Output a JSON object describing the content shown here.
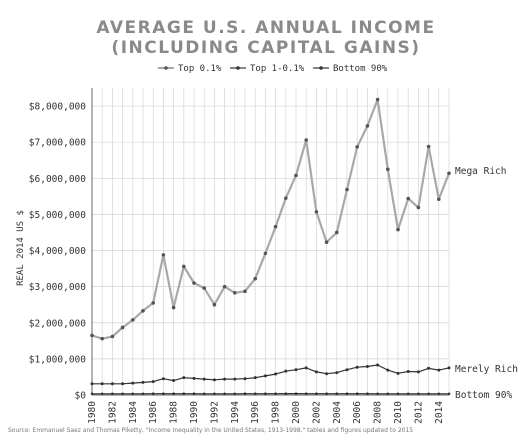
{
  "chart_data": {
    "type": "line",
    "title_line1": "AVERAGE U.S. ANNUAL INCOME",
    "title_line2": "(INCLUDING CAPITAL GAINS)",
    "ylabel": "REAL 2014 US $",
    "xlabel": "",
    "ylim": [
      0,
      8500000
    ],
    "xlim": [
      1980,
      2015
    ],
    "grid": true,
    "legend_position": "top-center",
    "x": [
      1980,
      1981,
      1982,
      1983,
      1984,
      1985,
      1986,
      1987,
      1988,
      1989,
      1990,
      1991,
      1992,
      1993,
      1994,
      1995,
      1996,
      1997,
      1998,
      1999,
      2000,
      2001,
      2002,
      2003,
      2004,
      2005,
      2006,
      2007,
      2008,
      2009,
      2010,
      2011,
      2012,
      2013,
      2014,
      2015
    ],
    "x_tick_labels": [
      "1980",
      "1982",
      "1984",
      "1986",
      "1988",
      "1990",
      "1992",
      "1994",
      "1996",
      "1998",
      "2000",
      "2002",
      "2004",
      "2006",
      "2008",
      "2010",
      "2012",
      "2014"
    ],
    "y_ticks": [
      0,
      1000000,
      2000000,
      3000000,
      4000000,
      5000000,
      6000000,
      7000000,
      8000000
    ],
    "y_tick_labels": [
      "$0",
      "$1,000,000",
      "$2,000,000",
      "$3,000,000",
      "$4,000,000",
      "$5,000,000",
      "$6,000,000",
      "$7,000,000",
      "$8,000,000"
    ],
    "series": [
      {
        "name": "Top 0.1%",
        "color": "#a8a8a8",
        "marker_color": "#555555",
        "values": [
          1650000,
          1560000,
          1620000,
          1870000,
          2080000,
          2330000,
          2550000,
          3880000,
          2420000,
          3560000,
          3100000,
          2960000,
          2500000,
          3000000,
          2830000,
          2870000,
          3220000,
          3920000,
          4660000,
          5450000,
          6080000,
          7060000,
          5070000,
          4230000,
          4500000,
          5690000,
          6870000,
          7450000,
          8180000,
          6250000,
          4580000,
          5440000,
          5190000,
          6880000,
          5420000,
          6140000
        ]
      },
      {
        "name": "Top 1-0.1%",
        "color": "#333333",
        "marker_color": "#333333",
        "values": [
          310000,
          310000,
          310000,
          310000,
          330000,
          350000,
          370000,
          450000,
          400000,
          480000,
          460000,
          440000,
          420000,
          440000,
          440000,
          450000,
          480000,
          530000,
          580000,
          660000,
          700000,
          750000,
          640000,
          590000,
          620000,
          700000,
          770000,
          790000,
          830000,
          690000,
          600000,
          650000,
          640000,
          740000,
          690000,
          750000
        ]
      },
      {
        "name": "Bottom 90%",
        "color": "#333333",
        "marker_color": "#333333",
        "values": [
          33000,
          33000,
          33000,
          33000,
          34000,
          34000,
          35000,
          35000,
          35000,
          35000,
          35000,
          34000,
          34000,
          34000,
          34000,
          35000,
          35000,
          36000,
          37000,
          38000,
          38000,
          37000,
          36000,
          35000,
          35000,
          35000,
          35000,
          35000,
          34000,
          33000,
          33000,
          33000,
          32000,
          32000,
          33000,
          33000
        ]
      }
    ],
    "annotations": [
      "Mega Rich",
      "Merely Rich",
      "Bottom 90%"
    ],
    "source_note": "Source: Emmanuel Saez and Thomas Piketty, \"Income Inequality in the United States, 1913-1998,\" tables and figures updated to 2015"
  }
}
